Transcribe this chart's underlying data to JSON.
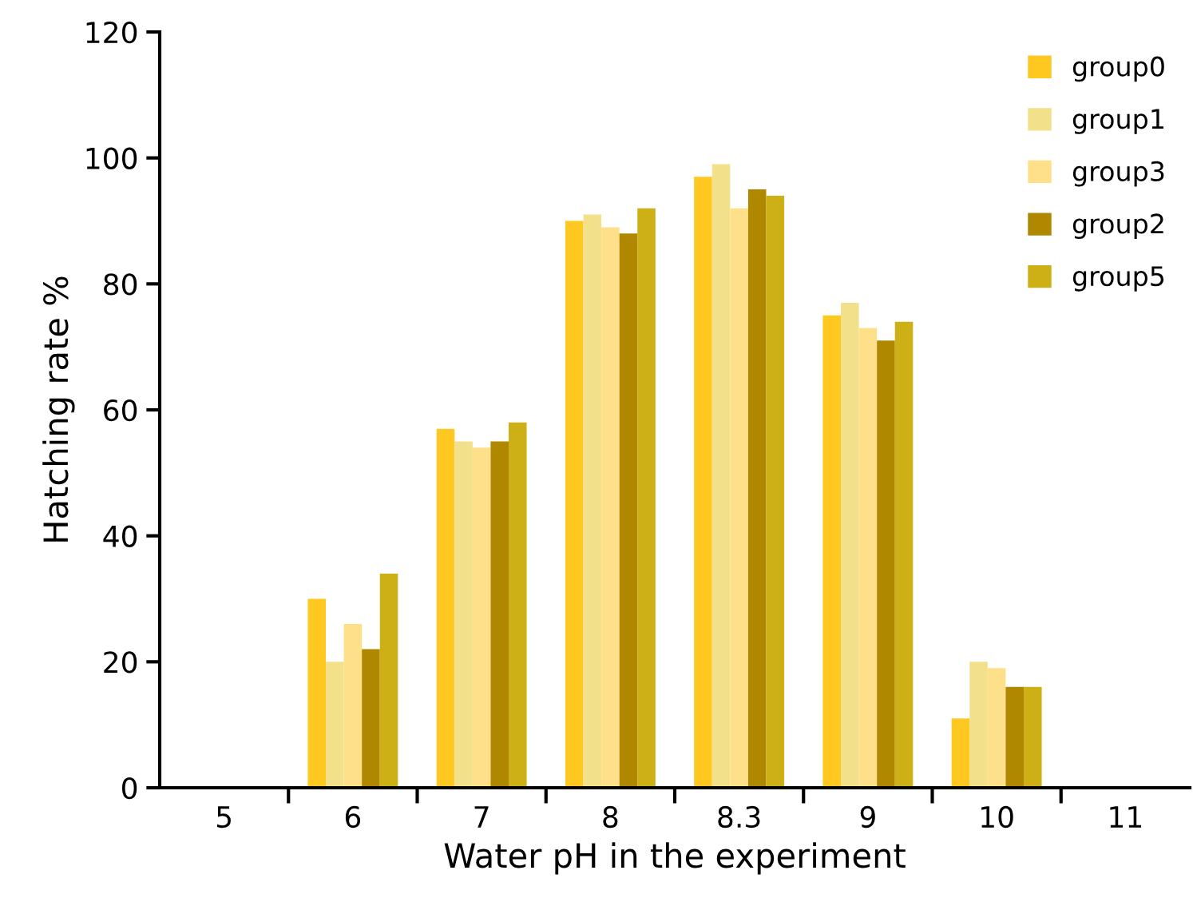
{
  "chart_data": {
    "type": "bar",
    "xlabel": "Water pH in the experiment",
    "ylabel": "Hatching rate %",
    "categories": [
      "5",
      "6",
      "7",
      "8",
      "8.3",
      "9",
      "10",
      "11"
    ],
    "series": [
      {
        "name": "group0",
        "color": "#ffc820",
        "values": [
          null,
          30,
          57,
          90,
          97,
          75,
          11,
          null
        ]
      },
      {
        "name": "group1",
        "color": "#f2e08a",
        "values": [
          null,
          20,
          55,
          91,
          99,
          77,
          20,
          null
        ]
      },
      {
        "name": "group3",
        "color": "#ffe08a",
        "values": [
          null,
          26,
          54,
          89,
          92,
          73,
          19,
          null
        ]
      },
      {
        "name": "group2",
        "color": "#b08800",
        "values": [
          null,
          22,
          55,
          88,
          95,
          71,
          16,
          null
        ]
      },
      {
        "name": "group5",
        "color": "#cdb016",
        "values": [
          null,
          34,
          58,
          92,
          94,
          74,
          16,
          null
        ]
      }
    ],
    "ylim": [
      0,
      120
    ],
    "yticks": [
      0,
      20,
      40,
      60,
      80,
      100,
      120
    ],
    "grid": false,
    "legend": "top right"
  }
}
